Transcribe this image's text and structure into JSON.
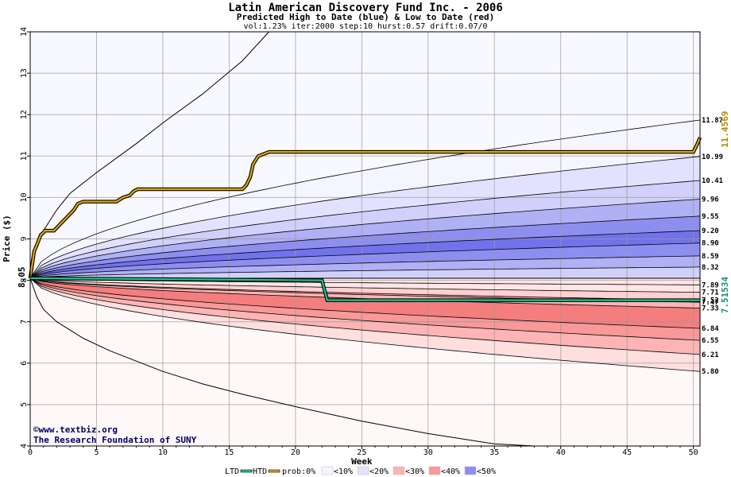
{
  "chart_data": {
    "type": "area",
    "title": "Latin American Discovery Fund Inc. - 2006",
    "subtitle": "Predicted High to Date (blue) &  Low to Date (red)",
    "params": "vol:1.23% iter:2000 step:10 hurst:0.57 drift:0.07/0",
    "xlabel": "Week",
    "ylabel": "Price ($)",
    "xlim": [
      0,
      50.5
    ],
    "ylim": [
      4,
      14
    ],
    "x_ticks": [
      0,
      5,
      10,
      15,
      20,
      25,
      30,
      35,
      40,
      45,
      50
    ],
    "y_ticks": [
      4,
      5,
      6,
      7,
      8,
      9,
      10,
      11,
      12,
      13,
      14
    ],
    "start_price": 8.05,
    "start_label": "8.05",
    "upper_bands": [
      {
        "label": "11.87",
        "end": 11.87,
        "fill": "#f5f5ff"
      },
      {
        "label": "10.99",
        "end": 10.99,
        "fill": "#e2e2ff"
      },
      {
        "label": "10.41",
        "end": 10.41,
        "fill": "#d0d0fa"
      },
      {
        "label": "9.96",
        "end": 9.96,
        "fill": "#b0b0f5"
      },
      {
        "label": "9.55",
        "end": 9.55,
        "fill": "#8e8ef0"
      },
      {
        "label": "9.20",
        "end": 9.2,
        "fill": "#7272ec"
      },
      {
        "label": "8.90",
        "end": 8.9,
        "fill": "#8e8ef0"
      },
      {
        "label": "8.59",
        "end": 8.59,
        "fill": "#b0b0f5"
      },
      {
        "label": "8.32",
        "end": 8.32,
        "fill": "#d0d0fa"
      },
      {
        "label": "7.89",
        "end": 7.89,
        "fill": "#e2e2ff"
      }
    ],
    "lower_bands": [
      {
        "label": "7.71",
        "end": 7.71,
        "fill": "#ffe6e6"
      },
      {
        "label": "7.52",
        "end": 7.52,
        "fill": "#ffd0d0"
      },
      {
        "label": "7.33",
        "end": 7.33,
        "fill": "#fcb4b4"
      },
      {
        "label": "7.47",
        "end": 7.47,
        "fill": "#f89898"
      },
      {
        "label": "6.84",
        "end": 6.84,
        "fill": "#f47d7d"
      },
      {
        "label": "6.55",
        "end": 6.55,
        "fill": "#f89898"
      },
      {
        "label": "6.21",
        "end": 6.21,
        "fill": "#fcb4b4"
      },
      {
        "label": "5.80",
        "end": 5.8,
        "fill": "#ffdede"
      }
    ],
    "outer_upper": {
      "x": [
        0,
        0.5,
        1,
        2,
        3,
        5,
        8,
        10,
        13,
        16,
        18
      ],
      "y": [
        8.05,
        8.9,
        9.2,
        9.7,
        10.1,
        10.6,
        11.3,
        11.8,
        12.5,
        13.3,
        14.0
      ]
    },
    "outer_lower": {
      "x": [
        0,
        0.5,
        1,
        2,
        4,
        6,
        8,
        10,
        13,
        16,
        20,
        25,
        30,
        35,
        38
      ],
      "y": [
        8.05,
        7.6,
        7.3,
        7.0,
        6.6,
        6.3,
        6.05,
        5.8,
        5.5,
        5.25,
        4.95,
        4.6,
        4.3,
        4.05,
        4.0
      ]
    },
    "htd": {
      "name": "HTD",
      "color": "#e0a800",
      "end_label": "11.4569",
      "x": [
        0,
        0.3,
        0.5,
        0.8,
        1.0,
        1.1,
        1.8,
        2.7,
        3.3,
        3.6,
        4.0,
        6.5,
        7.0,
        7.5,
        7.8,
        8.1,
        16.0,
        16.3,
        16.6,
        16.8,
        17.2,
        18.0,
        50.0,
        50.3,
        50.5
      ],
      "y": [
        8.05,
        8.7,
        8.85,
        9.1,
        9.15,
        9.2,
        9.2,
        9.5,
        9.7,
        9.85,
        9.9,
        9.9,
        10.0,
        10.05,
        10.15,
        10.2,
        10.2,
        10.3,
        10.5,
        10.8,
        11.0,
        11.1,
        11.1,
        11.3,
        11.45
      ]
    },
    "ltd": {
      "name": "LTD",
      "color": "#20c890",
      "end_label": "7.51534",
      "x": [
        0,
        22.0,
        22.4,
        50.5
      ],
      "y": [
        8.05,
        8.0,
        7.52,
        7.52
      ]
    },
    "legend": {
      "ltd_label": "LTD",
      "htd_label": "HTD",
      "prob_label": "prob:0%",
      "items": [
        {
          "label": "<10%",
          "color": "#f5f5ff"
        },
        {
          "label": "<20%",
          "color": "#e2e2ff"
        },
        {
          "label": "<30%",
          "color": "#fcb4b4"
        },
        {
          "label": "<40%",
          "color": "#f89898"
        },
        {
          "label": "<50%",
          "color": "#8e8ef0"
        }
      ]
    },
    "watermark": {
      "url": "www.textbiz.org",
      "org": "The Research Foundation of SUNY"
    },
    "grid": true
  }
}
